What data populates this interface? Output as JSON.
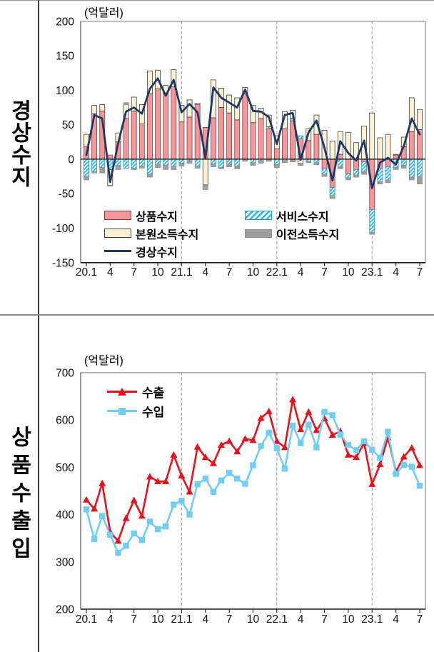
{
  "left_panel": {
    "top_title": "경상수지",
    "bottom_title": "상품수출입"
  },
  "colors": {
    "goods": "#F2989D",
    "goods_border": "#8C3B3B",
    "services": "#2BB7EA",
    "services_border": "#1F9CD0",
    "primary": "#FBF2D3",
    "primary_border": "#3f3f3f",
    "secondary": "#9E9E9E",
    "secondary_border": "#8f8f8f",
    "line": "#1F3864",
    "exports": "#E8121C",
    "imports": "#72CDF4",
    "grid_dash": "#a8a8a8",
    "frame": "#8c8c8c",
    "axis": "#1a1a1a"
  },
  "chart_data": [
    {
      "id": "current-account",
      "type": "bar",
      "subtype": "stacked-bar-with-line",
      "row_title": "경상수지",
      "unit": "(억달러)",
      "x_start": "2020-01",
      "x_end": "2023-07",
      "x_tick_labels": [
        "20.1",
        "4",
        "7",
        "10",
        "21.1",
        "4",
        "7",
        "10",
        "22.1",
        "4",
        "7",
        "10",
        "23.1",
        "4",
        "7"
      ],
      "year_gridline_months": [
        12,
        24,
        36
      ],
      "y_ticks": [
        200,
        150,
        100,
        50,
        0,
        -50,
        -100,
        -150
      ],
      "ylim": [
        -150,
        200
      ],
      "legend_position": "inside-lower-left",
      "series": [
        {
          "key": "goods",
          "name": "상품수지",
          "values": [
            19,
            66,
            70,
            6,
            25,
            59,
            70,
            51,
            95,
            102,
            96,
            105,
            54,
            61,
            79,
            46,
            60,
            75,
            67,
            57,
            95,
            53,
            59,
            45,
            15,
            44,
            56,
            30,
            27,
            36,
            -14,
            -41,
            7,
            -21,
            -15,
            -4,
            -73,
            -13,
            -11,
            6,
            18,
            40,
            43
          ]
        },
        {
          "key": "services",
          "name": "서비스수지",
          "values": [
            -25,
            -18,
            -12,
            -15,
            -9,
            -13,
            -13,
            -10,
            -22,
            -7,
            -9,
            -10,
            -6,
            -2,
            -10,
            0,
            -7,
            -12,
            -7,
            -10,
            0,
            -5,
            -2,
            2,
            -8,
            -2,
            3,
            4,
            -3,
            -5,
            -8,
            -12,
            -11,
            -6,
            -8,
            -14,
            -33,
            -20,
            -19,
            -12,
            -9,
            -26,
            -25
          ]
        },
        {
          "key": "primary",
          "name": "본원소득수지",
          "values": [
            17,
            12,
            9,
            -23,
            13,
            20,
            20,
            28,
            33,
            27,
            11,
            25,
            24,
            25,
            2,
            -37,
            55,
            28,
            26,
            32,
            9,
            25,
            15,
            17,
            19,
            25,
            12,
            -6,
            17,
            28,
            42,
            26,
            33,
            39,
            24,
            48,
            67,
            31,
            36,
            1,
            14,
            49,
            29
          ]
        },
        {
          "key": "secondary",
          "name": "이전소득수지",
          "values": [
            -5,
            -2,
            -8,
            -1,
            -6,
            3,
            -2,
            -3,
            -4,
            -5,
            -6,
            -5,
            -4,
            -4,
            -3,
            -7,
            -4,
            -2,
            -4,
            -4,
            -3,
            -4,
            -4,
            -3,
            -4,
            -3,
            -4,
            -3,
            -2,
            -3,
            -3,
            -4,
            -3,
            -3,
            -3,
            -4,
            -3,
            -3,
            -4,
            -3,
            -4,
            -4,
            -11
          ]
        }
      ],
      "line_series": {
        "key": "current_account",
        "name": "경상수지",
        "values": [
          6,
          64,
          59,
          -33,
          23,
          69,
          75,
          66,
          102,
          117,
          92,
          115,
          68,
          80,
          68,
          2,
          104,
          89,
          82,
          75,
          101,
          70,
          69,
          61,
          22,
          64,
          67,
          -1,
          39,
          56,
          17,
          -31,
          26,
          9,
          -2,
          27,
          -42,
          -5,
          2,
          -8,
          19,
          59,
          36
        ]
      }
    },
    {
      "id": "goods-exports-imports",
      "type": "line",
      "row_title": "상품수출입",
      "unit": "(억달러)",
      "x_start": "2020-01",
      "x_end": "2023-07",
      "x_tick_labels": [
        "20.1",
        "4",
        "7",
        "10",
        "21.1",
        "4",
        "7",
        "10",
        "22.1",
        "4",
        "7",
        "10",
        "23.1",
        "4",
        "7"
      ],
      "year_gridline_months": [
        12,
        24,
        36
      ],
      "y_ticks": [
        700,
        600,
        500,
        400,
        300,
        200
      ],
      "ylim": [
        200,
        700
      ],
      "legend_position": "inside-upper-left",
      "series": [
        {
          "key": "exports",
          "name": "수출",
          "marker": "triangle",
          "values": [
            431,
            412,
            466,
            363,
            344,
            392,
            430,
            397,
            480,
            470,
            470,
            526,
            482,
            448,
            543,
            521,
            508,
            547,
            555,
            533,
            560,
            557,
            604,
            618,
            555,
            542,
            643,
            580,
            617,
            578,
            603,
            568,
            576,
            526,
            521,
            551,
            464,
            506,
            563,
            491,
            522,
            541,
            504
          ]
        },
        {
          "key": "imports",
          "name": "수입",
          "marker": "square",
          "values": [
            411,
            348,
            397,
            357,
            319,
            334,
            360,
            346,
            385,
            369,
            375,
            421,
            429,
            400,
            464,
            476,
            448,
            472,
            488,
            476,
            465,
            504,
            545,
            573,
            540,
            497,
            588,
            551,
            590,
            542,
            617,
            610,
            569,
            547,
            536,
            555,
            537,
            520,
            575,
            486,
            505,
            501,
            461
          ]
        }
      ]
    }
  ]
}
